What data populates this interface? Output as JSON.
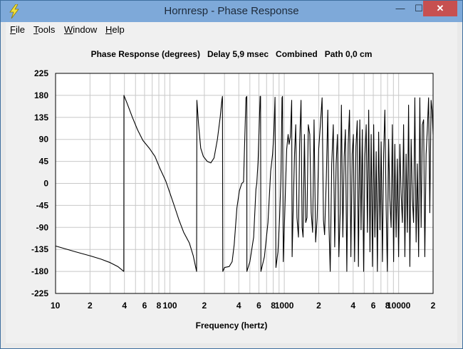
{
  "window": {
    "title": "Hornresp - Phase Response",
    "minimize_glyph": "—",
    "maximize_glyph": "☐",
    "close_glyph": "✕",
    "app_icon": "lightning-icon",
    "colors": {
      "titlebar": "#7ea9d9",
      "close": "#c75050",
      "plot_bg": "#ffffff",
      "grid": "#c8c8c8",
      "trace": "#000000"
    }
  },
  "menu": {
    "items": [
      {
        "first": "F",
        "rest": "ile"
      },
      {
        "first": "T",
        "rest": "ools"
      },
      {
        "first": "W",
        "rest": "indow"
      },
      {
        "first": "H",
        "rest": "elp"
      }
    ]
  },
  "chart_data": {
    "type": "line",
    "title": "Phase Response (degrees)   Delay 5,9 msec   Combined   Path 0,0 cm",
    "xlabel": "Frequency (hertz)",
    "ylabel": "",
    "x_scale": "log",
    "xlim": [
      10,
      20000
    ],
    "ylim": [
      -225,
      225
    ],
    "y_ticks": [
      225,
      180,
      135,
      90,
      45,
      0,
      -45,
      -90,
      -135,
      -180,
      -225
    ],
    "x_ticks": [
      {
        "value": 10,
        "label": "10"
      },
      {
        "value": 20,
        "label": "2"
      },
      {
        "value": 40,
        "label": "4"
      },
      {
        "value": 60,
        "label": "6"
      },
      {
        "value": 80,
        "label": "8"
      },
      {
        "value": 100,
        "label": "100"
      },
      {
        "value": 200,
        "label": "2"
      },
      {
        "value": 400,
        "label": "4"
      },
      {
        "value": 600,
        "label": "6"
      },
      {
        "value": 800,
        "label": "8"
      },
      {
        "value": 1000,
        "label": "1000"
      },
      {
        "value": 2000,
        "label": "2"
      },
      {
        "value": 4000,
        "label": "4"
      },
      {
        "value": 6000,
        "label": "6"
      },
      {
        "value": 8000,
        "label": "8"
      },
      {
        "value": 10000,
        "label": "10000"
      },
      {
        "value": 20000,
        "label": "2"
      }
    ],
    "grid": true,
    "series": [
      {
        "values": [
          [
            10,
            -128
          ],
          [
            15,
            -140
          ],
          [
            20,
            -148
          ],
          [
            25,
            -155
          ],
          [
            30,
            -162
          ],
          [
            35,
            -170
          ],
          [
            39.5,
            -180
          ],
          [
            39.6,
            180
          ],
          [
            42,
            165
          ],
          [
            47,
            135
          ],
          [
            52,
            110
          ],
          [
            58,
            88
          ],
          [
            66,
            72
          ],
          [
            74,
            55
          ],
          [
            82,
            30
          ],
          [
            92,
            5
          ],
          [
            100,
            -20
          ],
          [
            110,
            -48
          ],
          [
            120,
            -75
          ],
          [
            132,
            -100
          ],
          [
            148,
            -122
          ],
          [
            160,
            -148
          ],
          [
            171,
            -180
          ],
          [
            172,
            170
          ],
          [
            178,
            120
          ],
          [
            186,
            72
          ],
          [
            196,
            55
          ],
          [
            212,
            45
          ],
          [
            228,
            42
          ],
          [
            243,
            52
          ],
          [
            260,
            90
          ],
          [
            275,
            135
          ],
          [
            285,
            172
          ],
          [
            288,
            178
          ],
          [
            290,
            -180
          ],
          [
            300,
            -172
          ],
          [
            330,
            -170
          ],
          [
            350,
            -160
          ],
          [
            365,
            -125
          ],
          [
            385,
            -50
          ],
          [
            405,
            -15
          ],
          [
            425,
            0
          ],
          [
            440,
            3
          ],
          [
            462,
            175
          ],
          [
            470,
            178
          ],
          [
            471,
            -180
          ],
          [
            500,
            -160
          ],
          [
            540,
            -110
          ],
          [
            565,
            -12
          ],
          [
            575,
            0
          ],
          [
            590,
            45
          ],
          [
            615,
            178
          ],
          [
            620,
            178
          ],
          [
            625,
            -180
          ],
          [
            670,
            -150
          ],
          [
            720,
            -80
          ],
          [
            760,
            25
          ],
          [
            790,
            60
          ],
          [
            810,
            100
          ],
          [
            830,
            176
          ],
          [
            845,
            -172
          ],
          [
            880,
            -140
          ],
          [
            910,
            -70
          ],
          [
            935,
            10
          ],
          [
            955,
            175
          ],
          [
            965,
            178
          ],
          [
            980,
            -160
          ],
          [
            1010,
            -60
          ],
          [
            1030,
            10
          ],
          [
            1050,
            70
          ],
          [
            1080,
            100
          ],
          [
            1100,
            80
          ],
          [
            1130,
            95
          ],
          [
            1160,
            170
          ],
          [
            1170,
            -150
          ],
          [
            1200,
            -40
          ],
          [
            1230,
            60
          ],
          [
            1260,
            120
          ],
          [
            1290,
            -70
          ],
          [
            1330,
            -110
          ],
          [
            1360,
            80
          ],
          [
            1400,
            170
          ],
          [
            1430,
            -90
          ],
          [
            1460,
            -110
          ],
          [
            1500,
            100
          ],
          [
            1540,
            -80
          ],
          [
            1580,
            -70
          ],
          [
            1620,
            120
          ],
          [
            1670,
            100
          ],
          [
            1720,
            -60
          ],
          [
            1770,
            -100
          ],
          [
            1820,
            130
          ],
          [
            1880,
            -120
          ],
          [
            1940,
            -70
          ],
          [
            2000,
            70
          ],
          [
            2070,
            120
          ],
          [
            2140,
            175
          ],
          [
            2200,
            -75
          ],
          [
            2250,
            -105
          ],
          [
            2330,
            10
          ],
          [
            2400,
            150
          ],
          [
            2460,
            -90
          ],
          [
            2520,
            -180
          ],
          [
            2600,
            40
          ],
          [
            2680,
            120
          ],
          [
            2760,
            -130
          ],
          [
            2840,
            40
          ],
          [
            2920,
            100
          ],
          [
            3000,
            -150
          ],
          [
            3080,
            -60
          ],
          [
            3160,
            160
          ],
          [
            3250,
            -110
          ],
          [
            3340,
            55
          ],
          [
            3420,
            110
          ],
          [
            3520,
            -180
          ],
          [
            3620,
            80
          ],
          [
            3720,
            150
          ],
          [
            3820,
            -150
          ],
          [
            3920,
            60
          ],
          [
            4020,
            100
          ],
          [
            4120,
            -160
          ],
          [
            4230,
            75
          ],
          [
            4340,
            128
          ],
          [
            4450,
            -170
          ],
          [
            4570,
            130
          ],
          [
            4690,
            -95
          ],
          [
            4810,
            110
          ],
          [
            4940,
            -180
          ],
          [
            5070,
            55
          ],
          [
            5200,
            120
          ],
          [
            5330,
            -100
          ],
          [
            5470,
            150
          ],
          [
            5610,
            -140
          ],
          [
            5750,
            100
          ],
          [
            5900,
            -170
          ],
          [
            6050,
            120
          ],
          [
            6200,
            -110
          ],
          [
            6360,
            65
          ],
          [
            6520,
            -180
          ],
          [
            6690,
            105
          ],
          [
            6860,
            -95
          ],
          [
            7030,
            85
          ],
          [
            7210,
            -160
          ],
          [
            7390,
            60
          ],
          [
            7580,
            150
          ],
          [
            7770,
            -50
          ],
          [
            7970,
            -180
          ],
          [
            8170,
            90
          ],
          [
            8380,
            -30
          ],
          [
            8590,
            -90
          ],
          [
            8810,
            120
          ],
          [
            9030,
            -160
          ],
          [
            9260,
            80
          ],
          [
            9500,
            -110
          ],
          [
            9740,
            50
          ],
          [
            9990,
            -150
          ],
          [
            10250,
            80
          ],
          [
            10510,
            -20
          ],
          [
            10780,
            -80
          ],
          [
            11050,
            120
          ],
          [
            11330,
            -150
          ],
          [
            11620,
            60
          ],
          [
            11920,
            -100
          ],
          [
            12220,
            160
          ],
          [
            12530,
            -170
          ],
          [
            12850,
            90
          ],
          [
            13180,
            -30
          ],
          [
            13510,
            -80
          ],
          [
            13860,
            175
          ],
          [
            14210,
            -120
          ],
          [
            14570,
            40
          ],
          [
            14940,
            -150
          ],
          [
            15320,
            175
          ],
          [
            15710,
            -90
          ],
          [
            16110,
            120
          ],
          [
            16520,
            130
          ],
          [
            16940,
            -150
          ],
          [
            17370,
            60
          ],
          [
            17810,
            110
          ],
          [
            18260,
            175
          ],
          [
            18720,
            -60
          ],
          [
            19200,
            170
          ],
          [
            19600,
            150
          ],
          [
            20000,
            100
          ]
        ]
      }
    ]
  }
}
